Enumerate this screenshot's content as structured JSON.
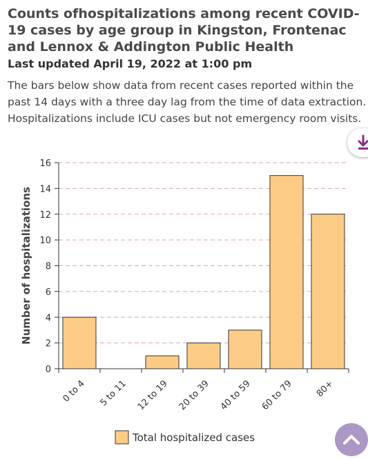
{
  "header": {
    "title": "Counts ofhospitalizations among recent COVID-19 cases by age group in Kingston, Frontenac and Lennox & Addington Public Health",
    "updated": "Last updated April 19, 2022 at 1:00 pm",
    "description": "The bars below show data from recent cases reported within the past 14 days with a three day lag from the time of data extraction. Hospitalizations include ICU cases but not emergency room visits."
  },
  "icons": {
    "download": "download-icon",
    "scroll_top": "chevron-up-icon"
  },
  "colors": {
    "bar_fill": "#fccc86",
    "bar_stroke": "#333333",
    "grid": "#d9a6b6",
    "download_icon": "#8a2b8a",
    "scroll_top_bg": "#ab98c4"
  },
  "chart_data": {
    "type": "bar",
    "title": "",
    "xlabel": "",
    "ylabel": "Number of hospitalizations",
    "categories": [
      "0 to 4",
      "5 to 11",
      "12 to 19",
      "20 to 39",
      "40 to 59",
      "60 to 79",
      "80+"
    ],
    "series": [
      {
        "name": "Total hospitalized cases",
        "values": [
          4,
          0,
          1,
          2,
          3,
          15,
          12
        ]
      }
    ],
    "yticks": [
      0,
      2,
      4,
      6,
      8,
      10,
      12,
      14,
      16
    ],
    "ylim": [
      0,
      16
    ],
    "grid": true,
    "legend": "bottom"
  }
}
